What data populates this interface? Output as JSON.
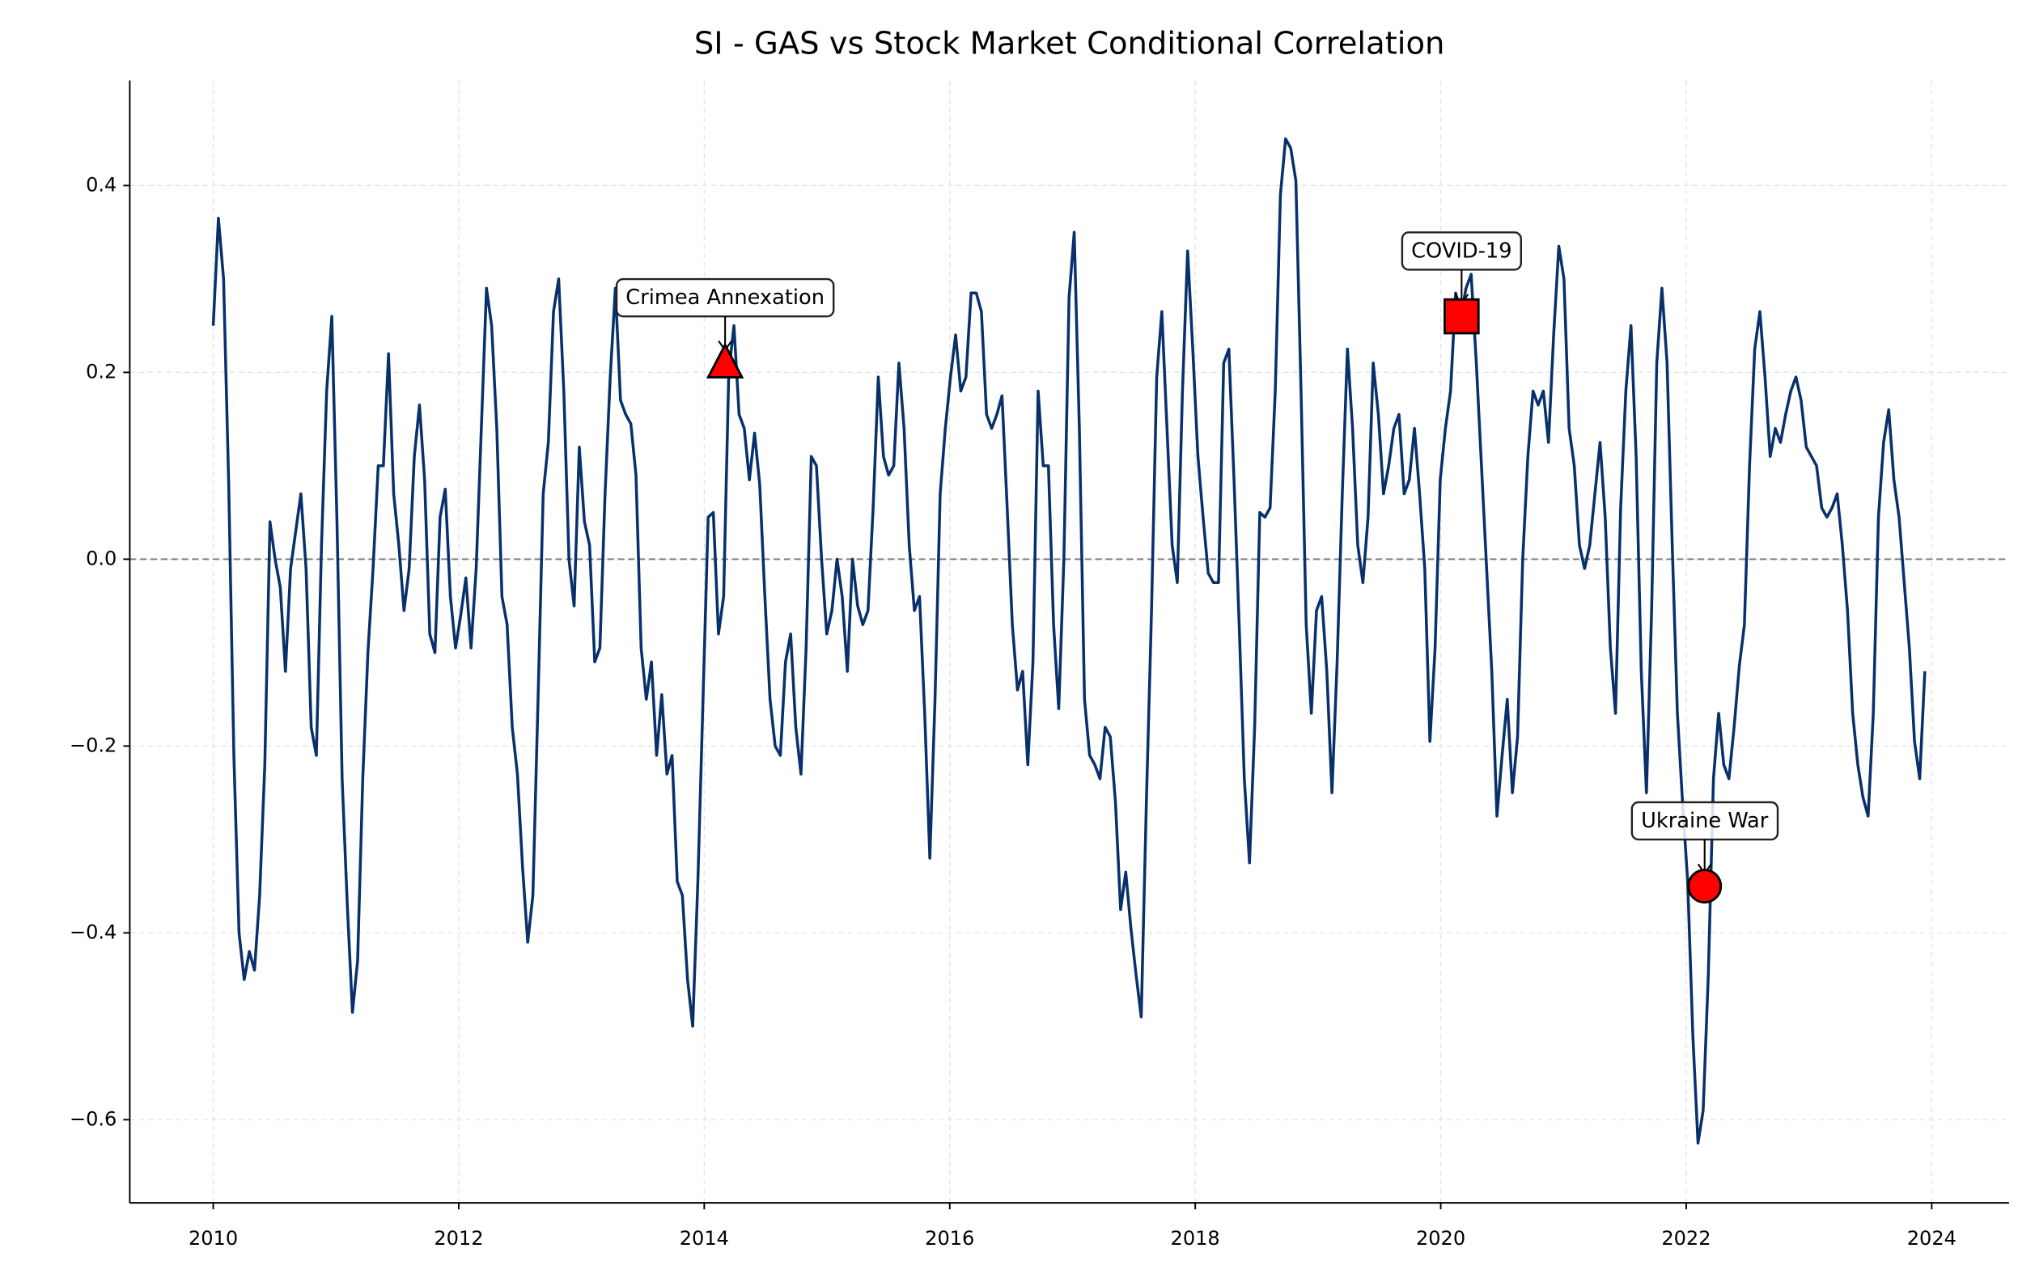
{
  "chart_data": {
    "type": "line",
    "title": "SI - GAS vs Stock Market Conditional Correlation",
    "color": "#08306b",
    "xlim": [
      2009.32,
      2024.63
    ],
    "ylim": [
      -0.689,
      0.5125
    ],
    "xticks": [
      2010,
      2012,
      2014,
      2016,
      2018,
      2020,
      2022,
      2024
    ],
    "yticks": [
      {
        "value": -0.6,
        "label": "−0.6"
      },
      {
        "value": -0.4,
        "label": "−0.4"
      },
      {
        "value": -0.2,
        "label": "−0.2"
      },
      {
        "value": 0,
        "label": "0.0"
      },
      0.2,
      0.4
    ],
    "grid": true,
    "hline": 0,
    "x": [
      2010,
      2010.042,
      2010.084,
      2010.126,
      2010.168,
      2010.21,
      2010.252,
      2010.294,
      2010.336,
      2010.378,
      2010.42,
      2010.462,
      2010.504,
      2010.546,
      2010.588,
      2010.63,
      2010.672,
      2010.714,
      2010.756,
      2010.798,
      2010.84,
      2010.882,
      2010.924,
      2010.966,
      2011.008,
      2011.05,
      2011.092,
      2011.134,
      2011.176,
      2011.218,
      2011.26,
      2011.302,
      2011.344,
      2011.386,
      2011.428,
      2011.47,
      2011.512,
      2011.554,
      2011.596,
      2011.638,
      2011.68,
      2011.722,
      2011.764,
      2011.806,
      2011.848,
      2011.89,
      2011.932,
      2011.974,
      2012.016,
      2012.058,
      2012.1,
      2012.142,
      2012.184,
      2012.226,
      2012.268,
      2012.31,
      2012.352,
      2012.394,
      2012.436,
      2012.478,
      2012.52,
      2012.562,
      2012.604,
      2012.646,
      2012.688,
      2012.73,
      2012.772,
      2012.814,
      2012.856,
      2012.898,
      2012.94,
      2012.982,
      2013.024,
      2013.066,
      2013.108,
      2013.15,
      2013.192,
      2013.234,
      2013.276,
      2013.318,
      2013.36,
      2013.402,
      2013.444,
      2013.486,
      2013.528,
      2013.57,
      2013.612,
      2013.654,
      2013.696,
      2013.738,
      2013.78,
      2013.822,
      2013.864,
      2013.906,
      2013.948,
      2013.99,
      2014.032,
      2014.074,
      2014.116,
      2014.158,
      2014.2,
      2014.242,
      2014.284,
      2014.326,
      2014.368,
      2014.41,
      2014.452,
      2014.494,
      2014.536,
      2014.578,
      2014.62,
      2014.662,
      2014.704,
      2014.746,
      2014.788,
      2014.83,
      2014.872,
      2014.914,
      2014.956,
      2014.998,
      2015.04,
      2015.082,
      2015.124,
      2015.166,
      2015.208,
      2015.25,
      2015.292,
      2015.334,
      2015.376,
      2015.418,
      2015.46,
      2015.502,
      2015.544,
      2015.586,
      2015.628,
      2015.67,
      2015.712,
      2015.754,
      2015.796,
      2015.838,
      2015.88,
      2015.922,
      2015.964,
      2016.006,
      2016.048,
      2016.09,
      2016.132,
      2016.174,
      2016.216,
      2016.258,
      2016.3,
      2016.342,
      2016.384,
      2016.426,
      2016.468,
      2016.51,
      2016.552,
      2016.594,
      2016.636,
      2016.678,
      2016.72,
      2016.762,
      2016.804,
      2016.846,
      2016.888,
      2016.93,
      2016.972,
      2017.014,
      2017.056,
      2017.098,
      2017.14,
      2017.182,
      2017.224,
      2017.266,
      2017.308,
      2017.35,
      2017.392,
      2017.434,
      2017.476,
      2017.518,
      2017.56,
      2017.602,
      2017.644,
      2017.686,
      2017.728,
      2017.77,
      2017.812,
      2017.854,
      2017.896,
      2017.938,
      2017.98,
      2018.022,
      2018.064,
      2018.106,
      2018.148,
      2018.19,
      2018.232,
      2018.274,
      2018.316,
      2018.358,
      2018.4,
      2018.442,
      2018.484,
      2018.526,
      2018.568,
      2018.61,
      2018.652,
      2018.694,
      2018.736,
      2018.778,
      2018.82,
      2018.862,
      2018.904,
      2018.946,
      2018.988,
      2019.03,
      2019.072,
      2019.114,
      2019.156,
      2019.198,
      2019.24,
      2019.282,
      2019.324,
      2019.366,
      2019.408,
      2019.45,
      2019.492,
      2019.534,
      2019.576,
      2019.618,
      2019.66,
      2019.702,
      2019.744,
      2019.786,
      2019.828,
      2019.87,
      2019.912,
      2019.954,
      2019.996,
      2020.038,
      2020.08,
      2020.122,
      2020.164,
      2020.206,
      2020.248,
      2020.29,
      2020.332,
      2020.374,
      2020.416,
      2020.458,
      2020.5,
      2020.542,
      2020.584,
      2020.626,
      2020.668,
      2020.71,
      2020.752,
      2020.794,
      2020.836,
      2020.878,
      2020.92,
      2020.962,
      2021.004,
      2021.046,
      2021.088,
      2021.13,
      2021.172,
      2021.214,
      2021.256,
      2021.298,
      2021.34,
      2021.382,
      2021.424,
      2021.466,
      2021.508,
      2021.55,
      2021.592,
      2021.634,
      2021.676,
      2021.718,
      2021.76,
      2021.802,
      2021.844,
      2021.886,
      2021.928,
      2021.97,
      2022.012,
      2022.054,
      2022.096,
      2022.138,
      2022.18,
      2022.222,
      2022.264,
      2022.306,
      2022.348,
      2022.39,
      2022.432,
      2022.474,
      2022.516,
      2022.558,
      2022.6,
      2022.642,
      2022.684,
      2022.726,
      2022.768,
      2022.81,
      2022.852,
      2022.894,
      2022.936,
      2022.978,
      2023.02,
      2023.062,
      2023.104,
      2023.146,
      2023.188,
      2023.23,
      2023.272,
      2023.314,
      2023.356,
      2023.398,
      2023.44,
      2023.482,
      2023.524,
      2023.566,
      2023.608,
      2023.65,
      2023.692,
      2023.734,
      2023.776,
      2023.818,
      2023.86,
      2023.902,
      2023.944
    ],
    "values": [
      0.25,
      0.365,
      0.3,
      0.08,
      -0.21,
      -0.4,
      -0.45,
      -0.42,
      -0.44,
      -0.36,
      -0.22,
      0.04,
      0.0,
      -0.03,
      -0.12,
      -0.01,
      0.03,
      0.07,
      -0.01,
      -0.18,
      -0.21,
      0.015,
      0.18,
      0.26,
      0.04,
      -0.235,
      -0.37,
      -0.485,
      -0.43,
      -0.235,
      -0.1,
      -0.01,
      0.1,
      0.1,
      0.22,
      0.07,
      0.015,
      -0.055,
      -0.01,
      0.11,
      0.165,
      0.085,
      -0.08,
      -0.1,
      0.045,
      0.075,
      -0.04,
      -0.095,
      -0.06,
      -0.02,
      -0.095,
      -0.01,
      0.14,
      0.29,
      0.25,
      0.14,
      -0.04,
      -0.07,
      -0.18,
      -0.23,
      -0.33,
      -0.41,
      -0.36,
      -0.15,
      0.07,
      0.125,
      0.265,
      0.3,
      0.18,
      0.0,
      -0.05,
      0.12,
      0.04,
      0.015,
      -0.11,
      -0.095,
      0.07,
      0.195,
      0.29,
      0.17,
      0.155,
      0.145,
      0.09,
      -0.095,
      -0.15,
      -0.11,
      -0.21,
      -0.145,
      -0.23,
      -0.21,
      -0.345,
      -0.36,
      -0.45,
      -0.5,
      -0.345,
      -0.15,
      0.045,
      0.05,
      -0.08,
      -0.04,
      0.2,
      0.25,
      0.155,
      0.14,
      0.085,
      0.135,
      0.08,
      -0.04,
      -0.15,
      -0.2,
      -0.21,
      -0.11,
      -0.08,
      -0.18,
      -0.23,
      -0.095,
      0.11,
      0.1,
      0.0,
      -0.08,
      -0.055,
      0.0,
      -0.04,
      -0.12,
      0.0,
      -0.05,
      -0.07,
      -0.055,
      0.055,
      0.195,
      0.11,
      0.09,
      0.1,
      0.21,
      0.14,
      0.015,
      -0.055,
      -0.04,
      -0.165,
      -0.32,
      -0.15,
      0.07,
      0.14,
      0.195,
      0.24,
      0.18,
      0.195,
      0.285,
      0.285,
      0.265,
      0.155,
      0.14,
      0.155,
      0.175,
      0.055,
      -0.07,
      -0.14,
      -0.12,
      -0.22,
      -0.11,
      0.18,
      0.1,
      0.1,
      -0.07,
      -0.16,
      0.0,
      0.28,
      0.35,
      0.14,
      -0.15,
      -0.21,
      -0.22,
      -0.235,
      -0.18,
      -0.19,
      -0.26,
      -0.375,
      -0.335,
      -0.395,
      -0.445,
      -0.49,
      -0.26,
      -0.055,
      0.195,
      0.265,
      0.14,
      0.015,
      -0.025,
      0.18,
      0.33,
      0.225,
      0.11,
      0.045,
      -0.015,
      -0.025,
      -0.025,
      0.21,
      0.225,
      0.085,
      -0.07,
      -0.235,
      -0.325,
      -0.18,
      0.05,
      0.045,
      0.055,
      0.18,
      0.39,
      0.45,
      0.44,
      0.405,
      0.18,
      -0.07,
      -0.165,
      -0.055,
      -0.04,
      -0.12,
      -0.25,
      -0.11,
      0.07,
      0.225,
      0.14,
      0.015,
      -0.025,
      0.045,
      0.21,
      0.155,
      0.07,
      0.1,
      0.14,
      0.155,
      0.07,
      0.085,
      0.14,
      0.07,
      -0.01,
      -0.195,
      -0.095,
      0.085,
      0.14,
      0.18,
      0.285,
      0.26,
      0.29,
      0.305,
      0.21,
      0.1,
      -0.01,
      -0.12,
      -0.275,
      -0.21,
      -0.15,
      -0.25,
      -0.19,
      0.0,
      0.11,
      0.18,
      0.165,
      0.18,
      0.125,
      0.24,
      0.335,
      0.3,
      0.14,
      0.1,
      0.015,
      -0.01,
      0.015,
      0.07,
      0.125,
      0.045,
      -0.095,
      -0.165,
      0.055,
      0.18,
      0.25,
      0.11,
      -0.12,
      -0.25,
      -0.055,
      0.21,
      0.29,
      0.21,
      0.015,
      -0.165,
      -0.26,
      -0.345,
      -0.51,
      -0.625,
      -0.59,
      -0.445,
      -0.235,
      -0.165,
      -0.22,
      -0.235,
      -0.18,
      -0.115,
      -0.07,
      0.1,
      0.225,
      0.265,
      0.195,
      0.11,
      0.14,
      0.125,
      0.155,
      0.18,
      0.195,
      0.17,
      0.12,
      0.11,
      0.1,
      0.055,
      0.045,
      0.055,
      0.07,
      0.015,
      -0.055,
      -0.165,
      -0.22,
      -0.255,
      -0.275,
      -0.165,
      0.045,
      0.125,
      0.16,
      0.085,
      0.045,
      -0.025,
      -0.095,
      -0.195,
      -0.235,
      -0.12
    ],
    "annotations": [
      {
        "text": "Crimea Annexation",
        "x": 2014.17,
        "y": 0.21,
        "marker": "triangle",
        "color": "#ff0000"
      },
      {
        "text": "COVID-19",
        "x": 2020.17,
        "y": 0.26,
        "marker": "square",
        "color": "#ff0000"
      },
      {
        "text": "Ukraine War",
        "x": 2022.15,
        "y": -0.35,
        "marker": "circle",
        "color": "#ff0000"
      }
    ]
  }
}
